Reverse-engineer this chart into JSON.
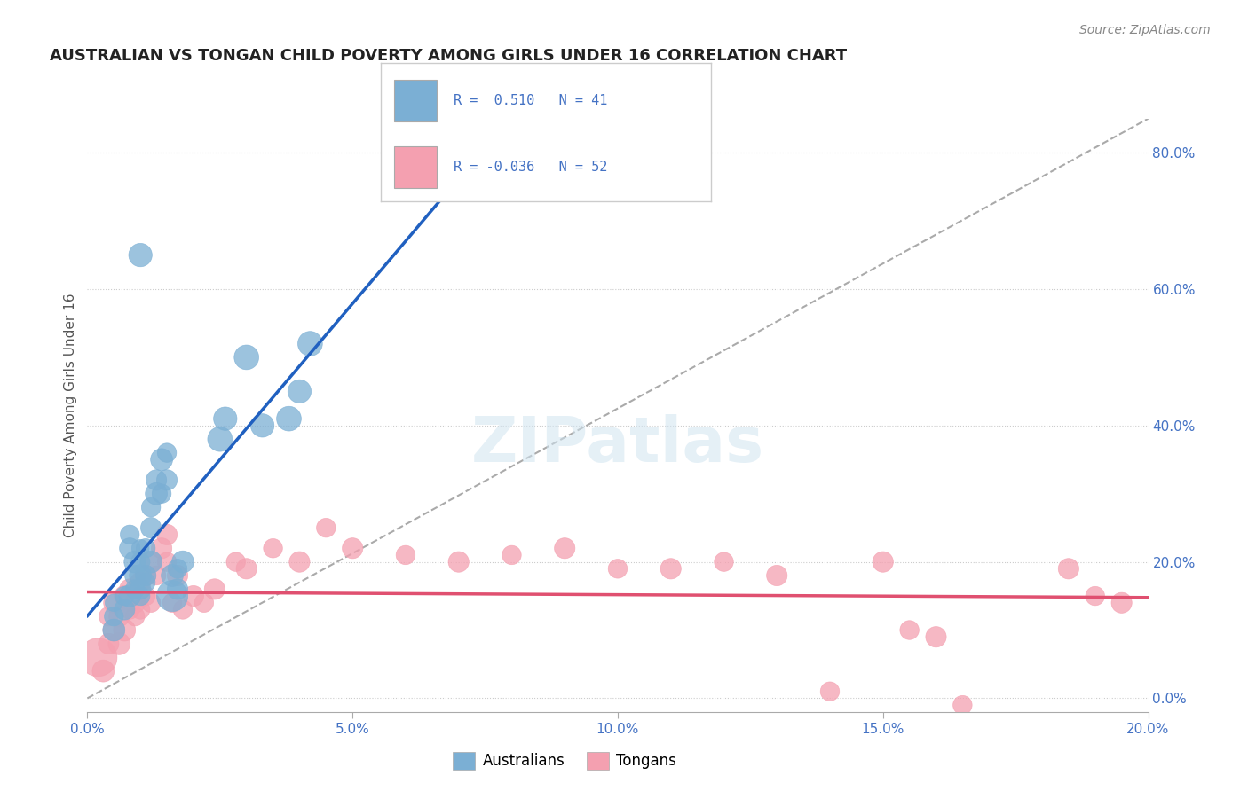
{
  "title": "AUSTRALIAN VS TONGAN CHILD POVERTY AMONG GIRLS UNDER 16 CORRELATION CHART",
  "source": "Source: ZipAtlas.com",
  "ylabel": "Child Poverty Among Girls Under 16",
  "watermark": "ZIPatlas",
  "xmin": 0.0,
  "xmax": 0.2,
  "ymin": -0.02,
  "ymax": 0.85,
  "title_color": "#222222",
  "source_color": "#888888",
  "blue_color": "#7bafd4",
  "pink_color": "#f4a0b0",
  "blue_line_color": "#2060c0",
  "pink_line_color": "#e05070",
  "dash_line_color": "#aaaaaa",
  "legend_R1": "0.510",
  "legend_N1": "41",
  "legend_R2": "-0.036",
  "legend_N2": "52",
  "australians_label": "Australians",
  "tongans_label": "Tongans",
  "blue_scatter_x": [
    0.005,
    0.005,
    0.005,
    0.007,
    0.007,
    0.008,
    0.008,
    0.008,
    0.009,
    0.009,
    0.009,
    0.01,
    0.01,
    0.01,
    0.01,
    0.01,
    0.011,
    0.011,
    0.011,
    0.012,
    0.012,
    0.012,
    0.013,
    0.013,
    0.014,
    0.014,
    0.015,
    0.015,
    0.016,
    0.016,
    0.017,
    0.017,
    0.018,
    0.025,
    0.026,
    0.03,
    0.033,
    0.038,
    0.04,
    0.042,
    0.01
  ],
  "blue_scatter_y": [
    0.1,
    0.12,
    0.14,
    0.13,
    0.15,
    0.15,
    0.22,
    0.24,
    0.16,
    0.18,
    0.2,
    0.15,
    0.16,
    0.18,
    0.2,
    0.22,
    0.17,
    0.18,
    0.22,
    0.2,
    0.25,
    0.28,
    0.3,
    0.32,
    0.3,
    0.35,
    0.32,
    0.36,
    0.15,
    0.18,
    0.16,
    0.19,
    0.2,
    0.38,
    0.41,
    0.5,
    0.4,
    0.41,
    0.45,
    0.52,
    0.65
  ],
  "blue_scatter_sizes": [
    40,
    30,
    25,
    35,
    30,
    40,
    35,
    30,
    30,
    35,
    40,
    30,
    35,
    40,
    30,
    25,
    30,
    35,
    30,
    40,
    35,
    30,
    40,
    35,
    30,
    40,
    35,
    30,
    80,
    40,
    35,
    30,
    40,
    50,
    45,
    50,
    45,
    50,
    45,
    50,
    45
  ],
  "pink_scatter_x": [
    0.002,
    0.003,
    0.004,
    0.004,
    0.005,
    0.005,
    0.006,
    0.006,
    0.007,
    0.007,
    0.008,
    0.008,
    0.009,
    0.009,
    0.01,
    0.01,
    0.011,
    0.011,
    0.012,
    0.012,
    0.013,
    0.014,
    0.015,
    0.015,
    0.016,
    0.017,
    0.018,
    0.02,
    0.022,
    0.024,
    0.028,
    0.03,
    0.035,
    0.04,
    0.045,
    0.05,
    0.06,
    0.07,
    0.08,
    0.09,
    0.1,
    0.11,
    0.12,
    0.13,
    0.14,
    0.15,
    0.155,
    0.16,
    0.165,
    0.185,
    0.19,
    0.195
  ],
  "pink_scatter_y": [
    0.06,
    0.04,
    0.08,
    0.12,
    0.1,
    0.14,
    0.08,
    0.12,
    0.1,
    0.15,
    0.13,
    0.16,
    0.12,
    0.14,
    0.13,
    0.17,
    0.15,
    0.18,
    0.14,
    0.2,
    0.18,
    0.22,
    0.2,
    0.24,
    0.14,
    0.18,
    0.13,
    0.15,
    0.14,
    0.16,
    0.2,
    0.19,
    0.22,
    0.2,
    0.25,
    0.22,
    0.21,
    0.2,
    0.21,
    0.22,
    0.19,
    0.19,
    0.2,
    0.18,
    0.01,
    0.2,
    0.1,
    0.09,
    -0.01,
    0.19,
    0.15,
    0.14
  ],
  "pink_scatter_sizes": [
    120,
    40,
    35,
    30,
    40,
    35,
    40,
    35,
    40,
    35,
    30,
    35,
    30,
    35,
    30,
    35,
    30,
    35,
    30,
    35,
    30,
    35,
    30,
    35,
    30,
    35,
    30,
    35,
    30,
    35,
    30,
    35,
    30,
    35,
    30,
    35,
    30,
    35,
    30,
    35,
    30,
    35,
    30,
    35,
    30,
    35,
    30,
    35,
    30,
    35,
    30,
    35
  ]
}
